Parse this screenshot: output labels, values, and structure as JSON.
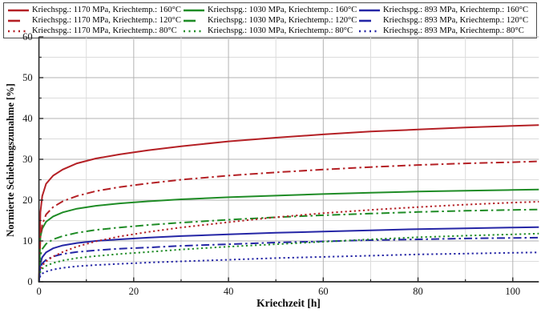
{
  "colors": {
    "red": "#b42025",
    "green": "#1f8c26",
    "blue": "#2526a6",
    "axis": "#2a2a2a",
    "grid_major": "#b3b3b3",
    "grid_minor": "#dcdcdc",
    "legend_border": "#4a4a4a",
    "text": "#141414"
  },
  "legend": {
    "entries": [
      {
        "label": "Kriechspg.: 1170 MPa, Kriechtemp.: 160°C",
        "color": "#b42025",
        "style": "solid"
      },
      {
        "label": "Kriechspg.: 1030 MPa, Kriechtemp.: 160°C",
        "color": "#1f8c26",
        "style": "solid"
      },
      {
        "label": "Kriechspg.: 893 MPa, Kriechtemp.: 160°C",
        "color": "#2526a6",
        "style": "solid"
      },
      {
        "label": "Kriechspg.: 1170 MPa, Kriechtemp.: 120°C",
        "color": "#b42025",
        "style": "dashdot"
      },
      {
        "label": "Kriechspg.: 1030 MPa, Kriechtemp.: 120°C",
        "color": "#1f8c26",
        "style": "dashdot"
      },
      {
        "label": "Kriechspg.: 893 MPa, Kriechtemp.: 120°C",
        "color": "#2526a6",
        "style": "dashdot"
      },
      {
        "label": "Kriechspg.: 1170 MPa, Kriechtemp.: 80°C",
        "color": "#b42025",
        "style": "dotted"
      },
      {
        "label": "Kriechspg.: 1030 MPa, Kriechtemp.: 80°C",
        "color": "#1f8c26",
        "style": "dotted"
      },
      {
        "label": "Kriechspg.: 893 MPa, Kriechtemp.: 80°C",
        "color": "#2526a6",
        "style": "dotted"
      }
    ]
  },
  "chart_data": {
    "type": "line",
    "title": "",
    "xlabel": "Kriechzeit [h]",
    "ylabel": "Normierte Schiebungszunahme [%]",
    "xlim": [
      0,
      105.5
    ],
    "ylim": [
      0,
      60
    ],
    "x_ticks": [
      0,
      20,
      40,
      60,
      80,
      100
    ],
    "x_minor_ticks": [
      10,
      30,
      50,
      70,
      90
    ],
    "y_ticks": [
      0,
      10,
      20,
      30,
      40,
      50,
      60
    ],
    "y_minor_ticks": [
      5,
      15,
      25,
      35,
      45,
      55
    ],
    "grid": "major and minor, light gray",
    "legend_position": "top",
    "x": [
      0,
      0.3,
      0.7,
      1.5,
      3,
      5,
      8,
      12,
      17,
      23,
      30,
      40,
      50,
      60,
      70,
      80,
      90,
      100,
      105.5
    ],
    "series": [
      {
        "name": "Kriechspg.: 1170 MPa, Kriechtemp.: 160°C",
        "color": "#b42025",
        "style": "solid",
        "values": [
          0,
          17,
          21,
          24,
          26,
          27.5,
          29,
          30.2,
          31.2,
          32.2,
          33.2,
          34.4,
          35.3,
          36.1,
          36.8,
          37.3,
          37.8,
          38.2,
          38.4
        ]
      },
      {
        "name": "Kriechspg.: 1030 MPa, Kriechtemp.: 160°C",
        "color": "#1f8c26",
        "style": "solid",
        "values": [
          0,
          11,
          13,
          14.7,
          16,
          17,
          17.9,
          18.6,
          19.2,
          19.7,
          20.2,
          20.7,
          21.1,
          21.5,
          21.8,
          22.1,
          22.3,
          22.5,
          22.6
        ]
      },
      {
        "name": "Kriechspg.: 893 MPa, Kriechtemp.: 160°C",
        "color": "#2526a6",
        "style": "solid",
        "values": [
          0,
          4.5,
          6,
          7.2,
          8.2,
          8.9,
          9.5,
          10,
          10.4,
          10.8,
          11.2,
          11.6,
          12,
          12.3,
          12.6,
          12.9,
          13.1,
          13.3,
          13.4
        ]
      },
      {
        "name": "Kriechspg.: 1170 MPa, Kriechtemp.: 120°C",
        "color": "#b42025",
        "style": "dashdot",
        "values": [
          0,
          11,
          14,
          16.5,
          18.3,
          19.7,
          21,
          22.2,
          23.2,
          24.1,
          25,
          26,
          26.8,
          27.5,
          28.1,
          28.6,
          29,
          29.3,
          29.5
        ]
      },
      {
        "name": "Kriechspg.: 1030 MPa, Kriechtemp.: 120°C",
        "color": "#1f8c26",
        "style": "dashdot",
        "values": [
          0,
          6.5,
          8,
          9.3,
          10.4,
          11.2,
          12,
          12.7,
          13.3,
          13.9,
          14.5,
          15.2,
          15.8,
          16.3,
          16.7,
          17.1,
          17.4,
          17.6,
          17.7
        ]
      },
      {
        "name": "Kriechspg.: 893 MPa, Kriechtemp.: 120°C",
        "color": "#2526a6",
        "style": "dashdot",
        "values": [
          0,
          3.5,
          4.5,
          5.4,
          6.2,
          6.8,
          7.3,
          7.7,
          8.1,
          8.4,
          8.8,
          9.2,
          9.6,
          9.9,
          10.2,
          10.4,
          10.6,
          10.75,
          10.8
        ]
      },
      {
        "name": "Kriechspg.: 1170 MPa, Kriechtemp.: 80°C",
        "color": "#b42025",
        "style": "dotted",
        "values": [
          0,
          3,
          4,
          5,
          6.2,
          7.3,
          8.6,
          9.9,
          11.1,
          12.2,
          13.3,
          14.6,
          15.8,
          16.8,
          17.6,
          18.3,
          18.9,
          19.4,
          19.6
        ]
      },
      {
        "name": "Kriechspg.: 1030 MPa, Kriechtemp.: 80°C",
        "color": "#1f8c26",
        "style": "dotted",
        "values": [
          0,
          2.5,
          3.2,
          3.9,
          4.6,
          5.2,
          5.8,
          6.3,
          6.8,
          7.3,
          7.9,
          8.6,
          9.2,
          9.8,
          10.4,
          10.9,
          11.3,
          11.6,
          11.8
        ]
      },
      {
        "name": "Kriechspg.: 893 MPa, Kriechtemp.: 80°C",
        "color": "#2526a6",
        "style": "dotted",
        "values": [
          0,
          1.5,
          2,
          2.5,
          3,
          3.4,
          3.8,
          4.1,
          4.4,
          4.7,
          5,
          5.4,
          5.8,
          6.1,
          6.4,
          6.7,
          6.9,
          7.1,
          7.2
        ]
      }
    ]
  }
}
